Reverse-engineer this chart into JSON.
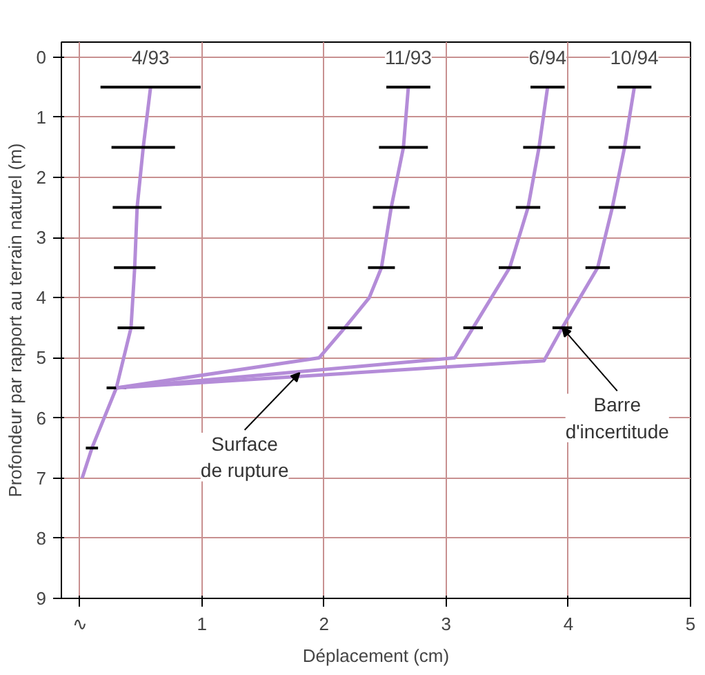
{
  "chart_data": {
    "type": "line",
    "xlabel": "Déplacement (cm)",
    "ylabel": "Profondeur par rapport au terrain naturel (m)",
    "xlim": [
      -0.15,
      5
    ],
    "ylim": [
      9,
      -0.25
    ],
    "xticks": [
      {
        "value": 0,
        "label": "∿"
      },
      1,
      2,
      3,
      4,
      5
    ],
    "yticks": [
      0,
      1,
      2,
      3,
      4,
      5,
      6,
      7,
      8,
      9
    ],
    "grid": true,
    "marker": "none",
    "line_style": "solid",
    "series": [
      {
        "name": "4/93",
        "color": "#b48cd8",
        "x": [
          0.58,
          0.52,
          0.47,
          0.45,
          0.42,
          0.36,
          0.3,
          0.1,
          0.02
        ],
        "values": [
          0.5,
          1.5,
          2.5,
          3.5,
          4.5,
          5.0,
          5.5,
          6.5,
          7.0
        ],
        "xerrors": [
          0.41,
          0.26,
          0.2,
          0.17,
          0.11,
          null,
          0.08,
          0.05,
          null
        ]
      },
      {
        "name": "11/93",
        "color": "#b48cd8",
        "x": [
          2.69,
          2.65,
          2.55,
          2.47,
          2.37,
          2.17,
          1.96,
          0.3
        ],
        "values": [
          0.5,
          1.5,
          2.5,
          3.5,
          4.0,
          4.5,
          5.0,
          5.5
        ],
        "xerrors": [
          0.18,
          0.2,
          0.15,
          0.11,
          null,
          0.14,
          null,
          null
        ]
      },
      {
        "name": "6/94",
        "color": "#b48cd8",
        "x": [
          3.83,
          3.76,
          3.67,
          3.52,
          3.22,
          3.07,
          0.3
        ],
        "values": [
          0.5,
          1.5,
          2.5,
          3.5,
          4.5,
          5.0,
          5.5
        ],
        "xerrors": [
          0.14,
          0.13,
          0.1,
          0.09,
          0.08,
          null,
          null
        ]
      },
      {
        "name": "10/94",
        "color": "#b48cd8",
        "x": [
          4.54,
          4.46,
          4.36,
          4.24,
          3.95,
          3.8,
          0.3
        ],
        "values": [
          0.5,
          1.5,
          2.5,
          3.5,
          4.5,
          5.05,
          5.5
        ],
        "xerrors": [
          0.14,
          0.13,
          0.11,
          0.1,
          0.08,
          null,
          null
        ]
      }
    ],
    "annotations": [
      {
        "text": "Surface\nde rupture",
        "x": 1.8,
        "y": 5.25
      },
      {
        "text": "Barre\nd'incertitude",
        "x": 3.95,
        "y": 4.5
      }
    ]
  }
}
